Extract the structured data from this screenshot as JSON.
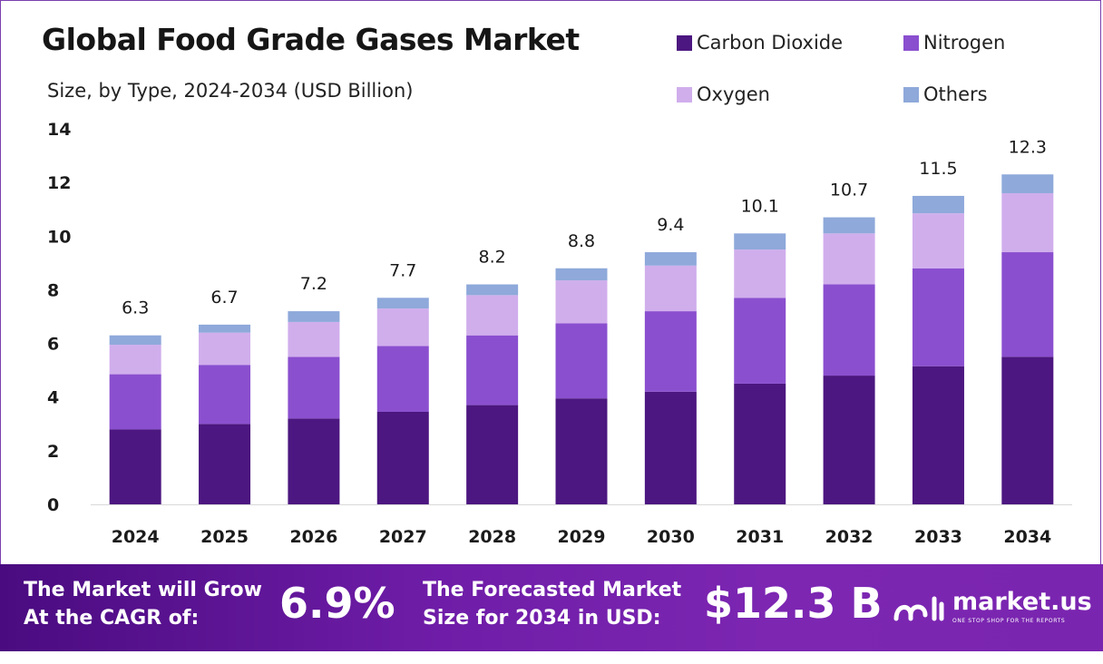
{
  "header": {
    "title": "Global Food Grade Gases Market",
    "subtitle": "Size, by Type, 2024-2034 (USD Billion)"
  },
  "chart_data": {
    "type": "bar",
    "stacked": true,
    "categories": [
      "2024",
      "2025",
      "2026",
      "2027",
      "2028",
      "2029",
      "2030",
      "2031",
      "2032",
      "2033",
      "2034"
    ],
    "series": [
      {
        "name": "Carbon Dioxide",
        "color": "#4c1780",
        "values": [
          2.8,
          3.0,
          3.2,
          3.45,
          3.7,
          3.95,
          4.2,
          4.5,
          4.8,
          5.15,
          5.5
        ]
      },
      {
        "name": "Nitrogen",
        "color": "#8a4fcf",
        "values": [
          2.05,
          2.2,
          2.3,
          2.45,
          2.6,
          2.8,
          3.0,
          3.2,
          3.4,
          3.65,
          3.9
        ]
      },
      {
        "name": "Oxygen",
        "color": "#d0aeec",
        "values": [
          1.1,
          1.2,
          1.3,
          1.4,
          1.5,
          1.6,
          1.7,
          1.8,
          1.9,
          2.05,
          2.2
        ]
      },
      {
        "name": "Others",
        "color": "#8ea9da",
        "values": [
          0.35,
          0.3,
          0.4,
          0.4,
          0.4,
          0.45,
          0.5,
          0.6,
          0.6,
          0.65,
          0.7
        ]
      }
    ],
    "totals": [
      "6.3",
      "6.7",
      "7.2",
      "7.7",
      "8.2",
      "8.8",
      "9.4",
      "10.1",
      "10.7",
      "11.5",
      "12.3"
    ],
    "yticks": [
      "0",
      "2",
      "4",
      "6",
      "8",
      "10",
      "12",
      "14"
    ],
    "ylim": [
      0,
      14
    ],
    "xlabel": "",
    "ylabel": "",
    "grid": false,
    "legend_position": "top-right"
  },
  "legend": [
    {
      "label": "Carbon Dioxide",
      "color": "#4c1780"
    },
    {
      "label": "Nitrogen",
      "color": "#8a4fcf"
    },
    {
      "label": "Oxygen",
      "color": "#d0aeec"
    },
    {
      "label": "Others",
      "color": "#8ea9da"
    }
  ],
  "banner": {
    "cagr_label_line1": "The Market will Grow",
    "cagr_label_line2": "At the CAGR of:",
    "cagr_value": "6.9%",
    "forecast_label_line1": "The Forecasted Market",
    "forecast_label_line2": "Size for 2034 in USD:",
    "forecast_value": "$12.3 B",
    "brand_name": "market.us",
    "brand_tagline": "ONE STOP SHOP FOR THE REPORTS"
  }
}
